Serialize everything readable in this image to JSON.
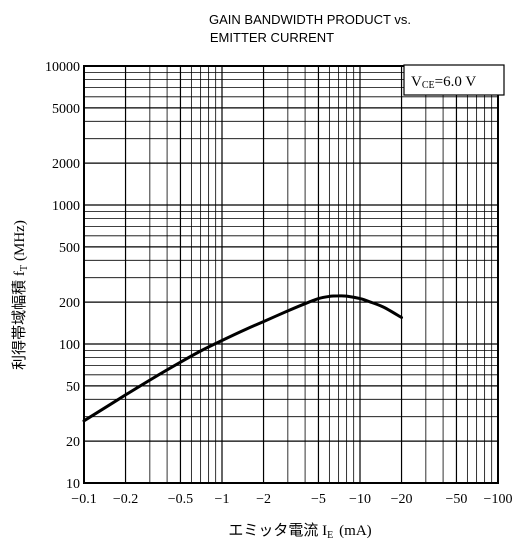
{
  "chart_data": {
    "type": "line",
    "title_line1": "GAIN BANDWIDTH PRODUCT vs.",
    "title_line2": "EMITTER CURRENT",
    "condition_label": "V",
    "condition_sub": "CE",
    "condition_value": "=6.0 V",
    "ylabel_main": "利得帯域幅積 f",
    "ylabel_sub": "T",
    "ylabel_unit": "(MHz)",
    "xlabel_main": "エミッタ電流 I",
    "xlabel_sub": "E",
    "xlabel_unit": "(mA)",
    "x_scale": "log",
    "y_scale": "log",
    "xlim": [
      -0.1,
      -100
    ],
    "ylim": [
      10,
      10000
    ],
    "grid": true,
    "x_ticks": [
      {
        "value": -0.1,
        "label": "−0.1"
      },
      {
        "value": -0.2,
        "label": "−0.2"
      },
      {
        "value": -0.5,
        "label": "−0.5"
      },
      {
        "value": -1,
        "label": "−1"
      },
      {
        "value": -2,
        "label": "−2"
      },
      {
        "value": -5,
        "label": "−5"
      },
      {
        "value": -10,
        "label": "−10"
      },
      {
        "value": -20,
        "label": "−20"
      },
      {
        "value": -50,
        "label": "−50"
      },
      {
        "value": -100,
        "label": "−100"
      }
    ],
    "y_ticks": [
      {
        "value": 10,
        "label": "10"
      },
      {
        "value": 20,
        "label": "20"
      },
      {
        "value": 50,
        "label": "50"
      },
      {
        "value": 100,
        "label": "100"
      },
      {
        "value": 200,
        "label": "200"
      },
      {
        "value": 500,
        "label": "500"
      },
      {
        "value": 1000,
        "label": "1000"
      },
      {
        "value": 2000,
        "label": "2000"
      },
      {
        "value": 5000,
        "label": "5000"
      },
      {
        "value": 10000,
        "label": "10000"
      }
    ],
    "series": [
      {
        "x": [
          -0.1,
          -0.15,
          -0.2,
          -0.3,
          -0.5,
          -0.7,
          -1,
          -1.5,
          -2,
          -3,
          -4,
          -5,
          -6,
          -7,
          -8,
          -10,
          -12,
          -15,
          -20
        ],
        "y": [
          28,
          36,
          43,
          55,
          74,
          89,
          106,
          128,
          145,
          173,
          195,
          212,
          220,
          222,
          221,
          212,
          200,
          183,
          155
        ]
      }
    ]
  }
}
